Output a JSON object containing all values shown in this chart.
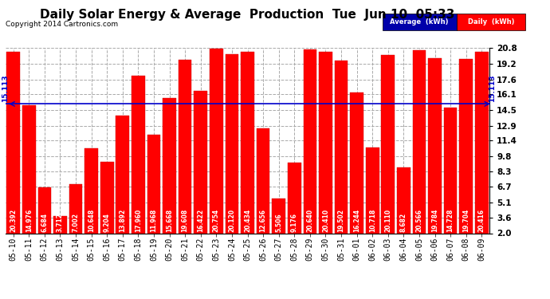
{
  "title": "Daily Solar Energy & Average  Production  Tue  Jun 10  05:33",
  "copyright": "Copyright 2014 Cartronics.com",
  "average_value": 15.113,
  "bar_color": "#ff0000",
  "average_line_color": "#0000cc",
  "categories": [
    "05-10",
    "05-11",
    "05-12",
    "05-13",
    "05-14",
    "05-15",
    "05-16",
    "05-17",
    "05-18",
    "05-19",
    "05-20",
    "05-21",
    "05-22",
    "05-23",
    "05-24",
    "05-25",
    "05-26",
    "05-27",
    "05-28",
    "05-29",
    "05-30",
    "05-31",
    "06-01",
    "06-02",
    "06-03",
    "06-04",
    "06-05",
    "06-06",
    "06-07",
    "06-08",
    "06-09"
  ],
  "values": [
    20.392,
    14.976,
    6.684,
    3.712,
    7.002,
    10.648,
    9.204,
    13.892,
    17.96,
    11.968,
    15.668,
    19.608,
    16.422,
    20.754,
    20.12,
    20.434,
    12.656,
    5.506,
    9.176,
    20.64,
    20.41,
    19.502,
    16.244,
    10.718,
    20.11,
    8.682,
    20.566,
    19.784,
    14.728,
    19.704,
    20.416
  ],
  "ylim": [
    2.0,
    20.8
  ],
  "yticks": [
    2.0,
    3.6,
    5.1,
    6.7,
    8.3,
    9.8,
    11.4,
    12.9,
    14.5,
    16.1,
    17.6,
    19.2,
    20.8
  ],
  "bg_color": "#ffffff",
  "plot_bg_color": "#ffffff",
  "grid_color": "#aaaaaa",
  "title_fontsize": 11,
  "tick_fontsize": 7,
  "bar_value_fontsize": 5.5,
  "avg_label_fontsize": 6.5
}
